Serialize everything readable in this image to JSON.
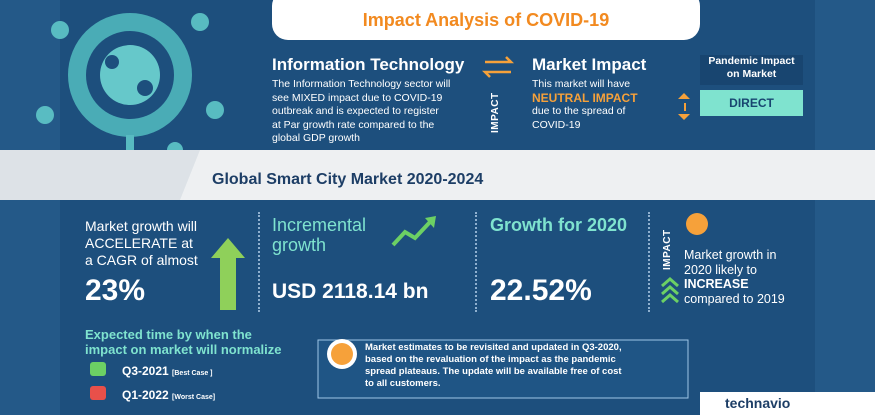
{
  "header": {
    "title": "Impact Analysis of COVID-19"
  },
  "information_technology": {
    "title": "Information Technology",
    "body": [
      "The Information Technology sector will",
      "see MIXED  impact due to COVID-19",
      "outbreak and is expected to register",
      "at Par growth rate compared to the",
      "global GDP growth"
    ]
  },
  "impact_label": "IMPACT",
  "market_impact": {
    "title": "Market Impact",
    "lines": [
      "This market will have",
      "NEUTRAL IMPACT",
      "due to the spread of",
      "COVID-19"
    ]
  },
  "pandemic_impact": {
    "label": [
      "Pandemic Impact",
      "on Market"
    ],
    "value": "DIRECT"
  },
  "market": {
    "title": "Global Smart City Market 2020-2024"
  },
  "stats": {
    "growth": {
      "lines": [
        "Market growth will",
        "ACCELERATE at",
        "a CAGR of almost"
      ],
      "value": "23%"
    },
    "incremental": {
      "title": [
        "Incremental",
        "growth"
      ],
      "value": "USD 2118.14 bn"
    },
    "growth_2020": {
      "title": "Growth for 2020",
      "value": "22.52%"
    },
    "impact": {
      "label": "IMPACT",
      "lines": [
        "Market growth in",
        "2020 likely to"
      ],
      "highlight": "INCREASE",
      "last": "compared to 2019"
    }
  },
  "normalize": {
    "title": [
      "Expected time by when the",
      "impact on market will normalize"
    ],
    "cases": [
      {
        "period": "Q3-2021",
        "note": "[Best Case ]"
      },
      {
        "period": "Q1-2022",
        "note": "[Worst Case]"
      }
    ]
  },
  "note": [
    "Market estimates to be revisited and updated in Q3-2020,",
    "based on the revaluation of the impact as the pandemic",
    "spread plateaus. The update will be available free of cost",
    "to all customers."
  ],
  "brand": "technavio"
}
